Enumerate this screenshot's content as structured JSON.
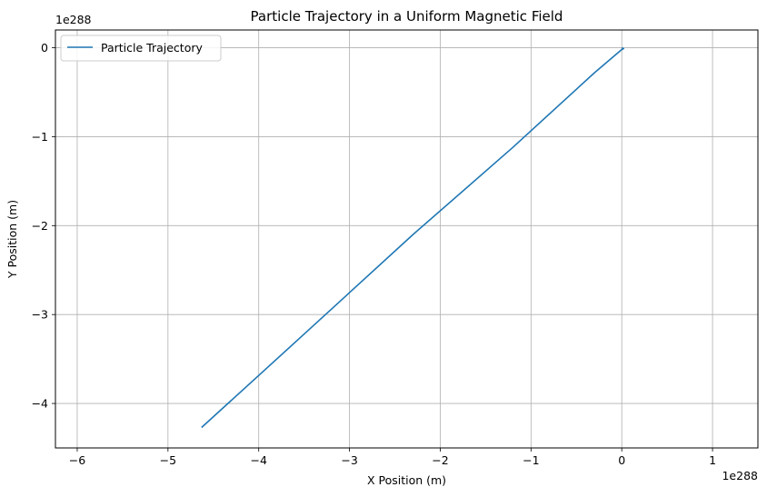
{
  "chart_data": {
    "type": "line",
    "title": "Particle Trajectory in a Uniform Magnetic Field",
    "xlabel": "X Position (m)",
    "ylabel": "Y Position (m)",
    "x_offset_label": "1e288",
    "y_offset_label": "1e288",
    "xlim": [
      -6.24,
      1.5
    ],
    "ylim": [
      -4.5,
      0.2
    ],
    "xticks": [
      -6,
      -5,
      -4,
      -3,
      -2,
      -1,
      0,
      1
    ],
    "yticks": [
      -4,
      -3,
      -2,
      -1,
      0
    ],
    "xtick_labels": [
      "−6",
      "−5",
      "−4",
      "−3",
      "−2",
      "−1",
      "0",
      "1"
    ],
    "ytick_labels": [
      "−4",
      "−3",
      "−2",
      "−1",
      "0"
    ],
    "grid": true,
    "legend_placement": "top-left",
    "series": [
      {
        "name": "Particle Trajectory",
        "color": "#1f77b4",
        "x": [
          -4.63,
          -3.5,
          -2.3,
          -1.2,
          -0.3,
          0.0,
          0.02,
          0.0
        ],
        "y": [
          -4.27,
          -3.22,
          -2.1,
          -1.12,
          -0.28,
          -0.02,
          -0.01,
          0.0
        ]
      }
    ]
  }
}
